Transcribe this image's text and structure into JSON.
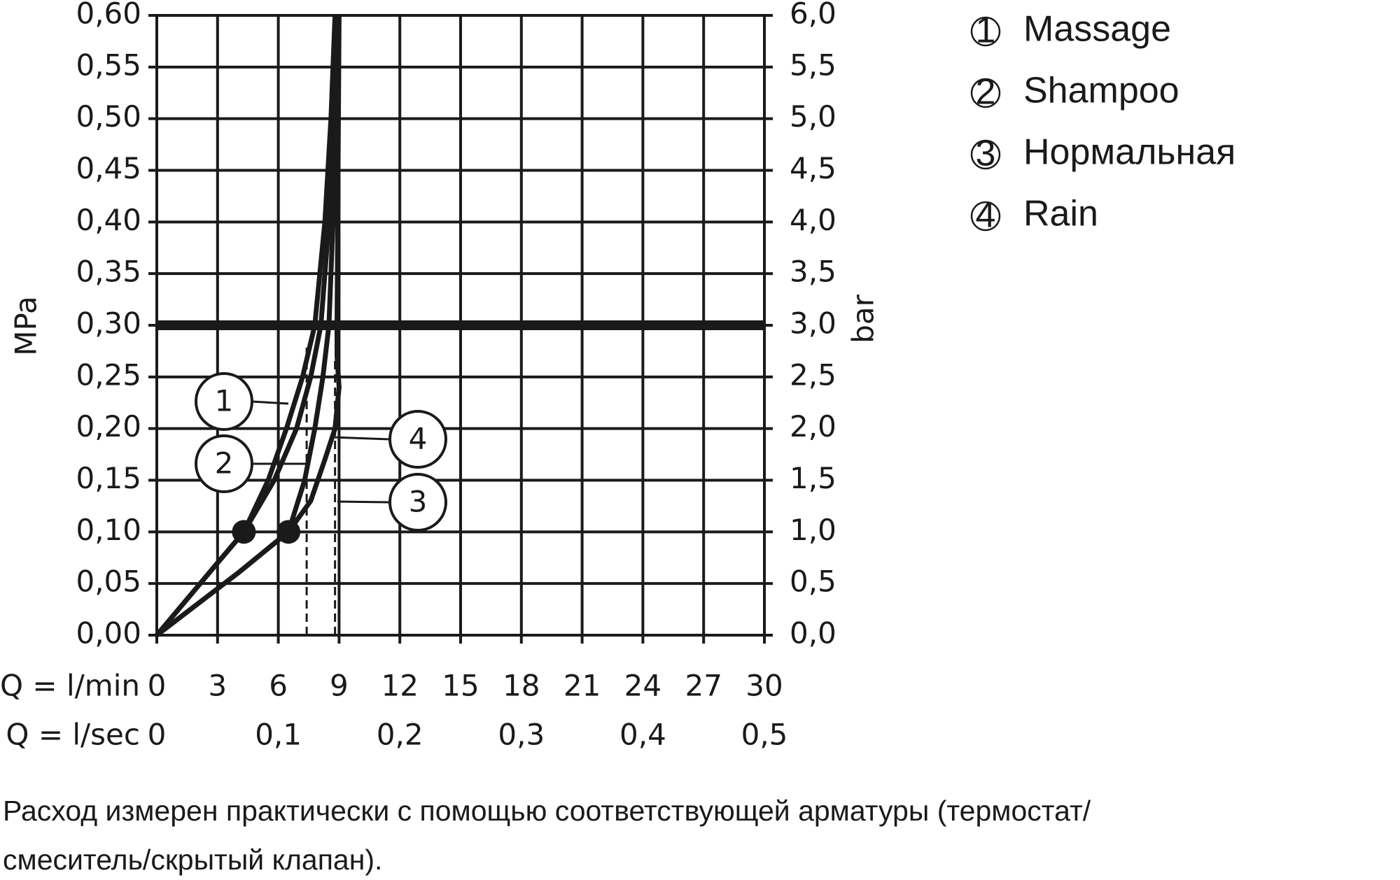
{
  "chart_data": {
    "type": "line",
    "ylabel": "MPa",
    "y2label": "bar",
    "xlabel": "Q = l/min",
    "x2label": "Q = l/sec",
    "xlim": [
      0,
      30
    ],
    "xticks": [
      0,
      3,
      6,
      9,
      12,
      15,
      18,
      21,
      24,
      27,
      30
    ],
    "x2lim": [
      0,
      0.5
    ],
    "x2ticks": [
      0,
      {
        "value": 0.1,
        "label": "0,1"
      },
      {
        "value": 0.2,
        "label": "0,2"
      },
      {
        "value": 0.3,
        "label": "0,3"
      },
      {
        "value": 0.4,
        "label": "0,4"
      },
      {
        "value": 0.5,
        "label": "0,5"
      }
    ],
    "ylim": [
      0,
      0.6
    ],
    "yticks": [
      {
        "value": 0,
        "label": "0,00"
      },
      {
        "value": 0.05,
        "label": "0,05"
      },
      {
        "value": 0.1,
        "label": "0,10"
      },
      {
        "value": 0.15,
        "label": "0,15"
      },
      {
        "value": 0.2,
        "label": "0,20"
      },
      {
        "value": 0.25,
        "label": "0,25"
      },
      {
        "value": 0.3,
        "label": "0,30"
      },
      {
        "value": 0.35,
        "label": "0,35"
      },
      {
        "value": 0.4,
        "label": "0,40"
      },
      {
        "value": 0.45,
        "label": "0,45"
      },
      {
        "value": 0.5,
        "label": "0,50"
      },
      {
        "value": 0.55,
        "label": "0,55"
      },
      {
        "value": 0.6,
        "label": "0,60"
      }
    ],
    "y2lim": [
      0,
      6
    ],
    "y2ticks": [
      {
        "value": 0,
        "label": "0,0"
      },
      {
        "value": 0.5,
        "label": "0,5"
      },
      {
        "value": 1,
        "label": "1,0"
      },
      {
        "value": 1.5,
        "label": "1,5"
      },
      {
        "value": 2,
        "label": "2,0"
      },
      {
        "value": 2.5,
        "label": "2,5"
      },
      {
        "value": 3,
        "label": "3,0"
      },
      {
        "value": 3.5,
        "label": "3,5"
      },
      {
        "value": 4,
        "label": "4,0"
      },
      {
        "value": 4.5,
        "label": "4,5"
      },
      {
        "value": 5,
        "label": "5,0"
      },
      {
        "value": 5.5,
        "label": "5,5"
      },
      {
        "value": 6,
        "label": "6,0"
      }
    ],
    "grid": true,
    "color": "#1a1a1a",
    "reference_line": 0.3,
    "dashed_lines": [
      {
        "x": 7.4,
        "top": 0.28
      },
      {
        "x": 8.8,
        "top": 0.27
      }
    ],
    "markers": [
      {
        "x": 4.3,
        "y": 0.1
      },
      {
        "x": 6.5,
        "y": 0.1
      }
    ],
    "series": [
      {
        "name": "Massage",
        "label": "1",
        "x": [
          0,
          3,
          4.3,
          5.5,
          6.4,
          7.2,
          7.8,
          8.3,
          8.6,
          8.8
        ],
        "values": [
          0,
          0.07,
          0.1,
          0.15,
          0.2,
          0.25,
          0.3,
          0.4,
          0.5,
          0.6
        ]
      },
      {
        "name": "Shampoo",
        "label": "2",
        "x": [
          0,
          3,
          4.3,
          5.8,
          6.9,
          7.6,
          8.1,
          8.5,
          8.7,
          8.9
        ],
        "values": [
          0,
          0.07,
          0.1,
          0.15,
          0.2,
          0.25,
          0.3,
          0.4,
          0.5,
          0.6
        ]
      },
      {
        "name": "Нормальная",
        "label": "3",
        "x": [
          0,
          4,
          6.5,
          7.6,
          8.3,
          8.8,
          9,
          8.9,
          8.9,
          9
        ],
        "values": [
          0,
          0.06,
          0.1,
          0.13,
          0.17,
          0.2,
          0.24,
          0.27,
          0.3,
          0.6
        ]
      },
      {
        "name": "Rain",
        "label": "4",
        "x": [
          0,
          4,
          6.5,
          7.3,
          7.8,
          8.2,
          8.5,
          8.7,
          8.8,
          8.9
        ],
        "values": [
          0,
          0.06,
          0.1,
          0.15,
          0.2,
          0.25,
          0.3,
          0.4,
          0.5,
          0.6
        ]
      }
    ],
    "footnote": [
      "Расход измерен практически с помощью соответствующей арматуры (термостат/",
      "смеситель/скрытый клапан)."
    ]
  }
}
